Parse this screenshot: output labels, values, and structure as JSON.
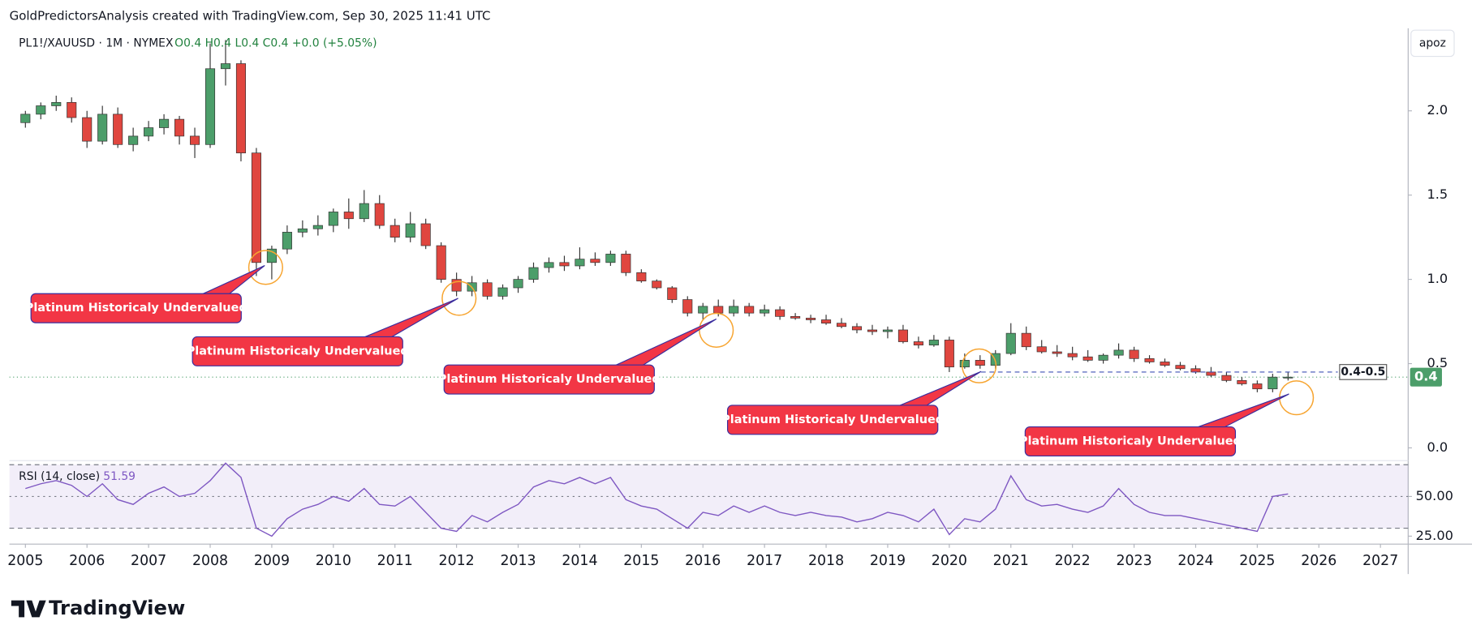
{
  "header": {
    "attribution": "GoldPredictorsAnalysis created with TradingView.com, Sep 30, 2025 11:41 UTC"
  },
  "toolbar": {
    "button": "apoz"
  },
  "footer": {
    "logo": "TradingView"
  },
  "chart_data": [
    {
      "type": "candlestick",
      "title": "PL1!/XAUUSD · 1M · NYMEX",
      "legend_text": "O0.4  H0.4  L0.4  C0.4  +0.0 (+5.05%)",
      "up_color": "#4c9e6a",
      "down_color": "#e0463f",
      "x": [
        2005,
        2005.25,
        2005.5,
        2005.75,
        2006,
        2006.25,
        2006.5,
        2006.75,
        2007,
        2007.25,
        2007.5,
        2007.75,
        2008,
        2008.25,
        2008.5,
        2008.75,
        2009,
        2009.25,
        2009.5,
        2009.75,
        2010,
        2010.25,
        2010.5,
        2010.75,
        2011,
        2011.25,
        2011.5,
        2011.75,
        2012,
        2012.25,
        2012.5,
        2012.75,
        2013,
        2013.25,
        2013.5,
        2013.75,
        2014,
        2014.25,
        2014.5,
        2014.75,
        2015,
        2015.25,
        2015.5,
        2015.75,
        2016,
        2016.25,
        2016.5,
        2016.75,
        2017,
        2017.25,
        2017.5,
        2017.75,
        2018,
        2018.25,
        2018.5,
        2018.75,
        2019,
        2019.25,
        2019.5,
        2019.75,
        2020,
        2020.25,
        2020.5,
        2020.75,
        2021,
        2021.25,
        2021.5,
        2021.75,
        2022,
        2022.25,
        2022.5,
        2022.75,
        2023,
        2023.25,
        2023.5,
        2023.75,
        2024,
        2024.25,
        2024.5,
        2024.75,
        2025,
        2025.25,
        2025.5
      ],
      "open": [
        1.93,
        1.98,
        2.03,
        2.05,
        1.96,
        1.82,
        1.98,
        1.8,
        1.85,
        1.9,
        1.95,
        1.85,
        1.8,
        2.25,
        2.28,
        1.75,
        1.1,
        1.18,
        1.28,
        1.3,
        1.32,
        1.4,
        1.36,
        1.45,
        1.32,
        1.25,
        1.33,
        1.2,
        1.0,
        0.93,
        0.98,
        0.9,
        0.95,
        1.0,
        1.07,
        1.1,
        1.08,
        1.12,
        1.1,
        1.15,
        1.04,
        0.99,
        0.95,
        0.88,
        0.8,
        0.84,
        0.8,
        0.84,
        0.8,
        0.82,
        0.78,
        0.77,
        0.76,
        0.74,
        0.72,
        0.7,
        0.69,
        0.7,
        0.63,
        0.61,
        0.64,
        0.48,
        0.52,
        0.49,
        0.56,
        0.68,
        0.6,
        0.57,
        0.56,
        0.54,
        0.52,
        0.55,
        0.58,
        0.53,
        0.51,
        0.49,
        0.47,
        0.45,
        0.43,
        0.4,
        0.38,
        0.35,
        0.42
      ],
      "high": [
        2.0,
        2.05,
        2.09,
        2.08,
        2.0,
        2.03,
        2.02,
        1.9,
        1.94,
        1.98,
        1.97,
        1.9,
        2.4,
        2.42,
        2.3,
        1.78,
        1.2,
        1.32,
        1.35,
        1.38,
        1.42,
        1.48,
        1.53,
        1.5,
        1.36,
        1.4,
        1.36,
        1.22,
        1.04,
        1.02,
        1.0,
        0.97,
        1.02,
        1.1,
        1.13,
        1.14,
        1.19,
        1.16,
        1.17,
        1.17,
        1.06,
        1.0,
        0.96,
        0.9,
        0.86,
        0.88,
        0.88,
        0.86,
        0.85,
        0.84,
        0.8,
        0.79,
        0.79,
        0.77,
        0.74,
        0.73,
        0.72,
        0.73,
        0.66,
        0.67,
        0.66,
        0.56,
        0.55,
        0.58,
        0.74,
        0.72,
        0.64,
        0.61,
        0.6,
        0.58,
        0.56,
        0.62,
        0.6,
        0.55,
        0.53,
        0.51,
        0.49,
        0.48,
        0.45,
        0.42,
        0.4,
        0.44,
        0.45
      ],
      "low": [
        1.9,
        1.95,
        2.0,
        1.93,
        1.78,
        1.8,
        1.78,
        1.76,
        1.82,
        1.86,
        1.8,
        1.72,
        1.78,
        2.15,
        1.7,
        1.02,
        1.0,
        1.15,
        1.25,
        1.26,
        1.28,
        1.3,
        1.34,
        1.3,
        1.22,
        1.22,
        1.18,
        0.98,
        0.9,
        0.9,
        0.88,
        0.88,
        0.92,
        0.98,
        1.04,
        1.05,
        1.06,
        1.08,
        1.08,
        1.02,
        0.98,
        0.94,
        0.86,
        0.78,
        0.76,
        0.78,
        0.78,
        0.78,
        0.78,
        0.76,
        0.76,
        0.74,
        0.73,
        0.71,
        0.68,
        0.67,
        0.65,
        0.62,
        0.59,
        0.6,
        0.45,
        0.47,
        0.47,
        0.47,
        0.55,
        0.58,
        0.56,
        0.54,
        0.52,
        0.51,
        0.5,
        0.53,
        0.51,
        0.5,
        0.48,
        0.46,
        0.44,
        0.42,
        0.39,
        0.37,
        0.33,
        0.33,
        0.4
      ],
      "close": [
        1.98,
        2.03,
        2.05,
        1.96,
        1.82,
        1.98,
        1.8,
        1.85,
        1.9,
        1.95,
        1.85,
        1.8,
        2.25,
        2.28,
        1.75,
        1.1,
        1.18,
        1.28,
        1.3,
        1.32,
        1.4,
        1.36,
        1.45,
        1.32,
        1.25,
        1.33,
        1.2,
        1.0,
        0.93,
        0.98,
        0.9,
        0.95,
        1.0,
        1.07,
        1.1,
        1.08,
        1.12,
        1.1,
        1.15,
        1.04,
        0.99,
        0.95,
        0.88,
        0.8,
        0.84,
        0.8,
        0.84,
        0.8,
        0.82,
        0.78,
        0.77,
        0.76,
        0.74,
        0.72,
        0.7,
        0.69,
        0.7,
        0.63,
        0.61,
        0.64,
        0.48,
        0.52,
        0.49,
        0.56,
        0.68,
        0.6,
        0.57,
        0.56,
        0.54,
        0.52,
        0.55,
        0.58,
        0.53,
        0.51,
        0.49,
        0.47,
        0.45,
        0.43,
        0.4,
        0.38,
        0.35,
        0.42,
        0.42
      ],
      "xlim": [
        2004.74,
        2027.45
      ],
      "xticks": [
        2005,
        2006,
        2007,
        2008,
        2009,
        2010,
        2011,
        2012,
        2013,
        2014,
        2015,
        2016,
        2017,
        2018,
        2019,
        2020,
        2021,
        2022,
        2023,
        2024,
        2025,
        2026,
        2027
      ],
      "ylim": [
        -0.07,
        2.49
      ],
      "yticks": [
        {
          "value": 0,
          "label": "0.0"
        },
        0.5,
        {
          "value": 1,
          "label": "1.0"
        },
        1.5,
        {
          "value": 2,
          "label": "2.0"
        }
      ],
      "last_price": {
        "value": 0.42,
        "label": "0.4",
        "color": "#4c9e6a"
      },
      "range_line": {
        "value": 0.45,
        "label": "0.4-0.5"
      },
      "annotations": [
        "Platinum Historicaly Undervalued",
        "Platinum Historicaly Undervalued",
        "Platinum Historicaly Undervalued",
        "Platinum Historicaly Undervalued",
        "Platinum Historicaly Undervalued"
      ]
    },
    {
      "type": "line",
      "title": "RSI (14, close)",
      "color": "#7e57c2",
      "x": [
        2005,
        2005.25,
        2005.5,
        2005.75,
        2006,
        2006.25,
        2006.5,
        2006.75,
        2007,
        2007.25,
        2007.5,
        2007.75,
        2008,
        2008.25,
        2008.5,
        2008.75,
        2009,
        2009.25,
        2009.5,
        2009.75,
        2010,
        2010.25,
        2010.5,
        2010.75,
        2011,
        2011.25,
        2011.5,
        2011.75,
        2012,
        2012.25,
        2012.5,
        2012.75,
        2013,
        2013.25,
        2013.5,
        2013.75,
        2014,
        2014.25,
        2014.5,
        2014.75,
        2015,
        2015.25,
        2015.5,
        2015.75,
        2016,
        2016.25,
        2016.5,
        2016.75,
        2017,
        2017.25,
        2017.5,
        2017.75,
        2018,
        2018.25,
        2018.5,
        2018.75,
        2019,
        2019.25,
        2019.5,
        2019.75,
        2020,
        2020.25,
        2020.5,
        2020.75,
        2021,
        2021.25,
        2021.5,
        2021.75,
        2022,
        2022.25,
        2022.5,
        2022.75,
        2023,
        2023.25,
        2023.5,
        2023.75,
        2024,
        2024.25,
        2024.5,
        2024.75,
        2025,
        2025.25,
        2025.5
      ],
      "values": [
        55,
        58,
        60,
        57,
        50,
        58,
        48,
        45,
        52,
        56,
        50,
        52,
        60,
        71,
        62,
        30,
        25,
        36,
        42,
        45,
        50,
        47,
        55,
        45,
        44,
        50,
        40,
        30,
        28,
        38,
        34,
        40,
        45,
        56,
        60,
        58,
        62,
        58,
        62,
        48,
        44,
        42,
        36,
        30,
        40,
        38,
        44,
        40,
        44,
        40,
        38,
        40,
        38,
        37,
        34,
        36,
        40,
        38,
        34,
        42,
        26,
        36,
        34,
        42,
        63,
        48,
        44,
        45,
        42,
        40,
        44,
        55,
        45,
        40,
        38,
        38,
        36,
        34,
        32,
        30,
        28,
        50,
        51.59
      ],
      "xlim": [
        2004.74,
        2027.45
      ],
      "ylim": [
        20,
        72
      ],
      "yticks": [
        {
          "value": 25,
          "label": "25.00"
        },
        {
          "value": 50,
          "label": "50.00"
        }
      ],
      "bands": [
        30,
        70
      ]
    }
  ]
}
